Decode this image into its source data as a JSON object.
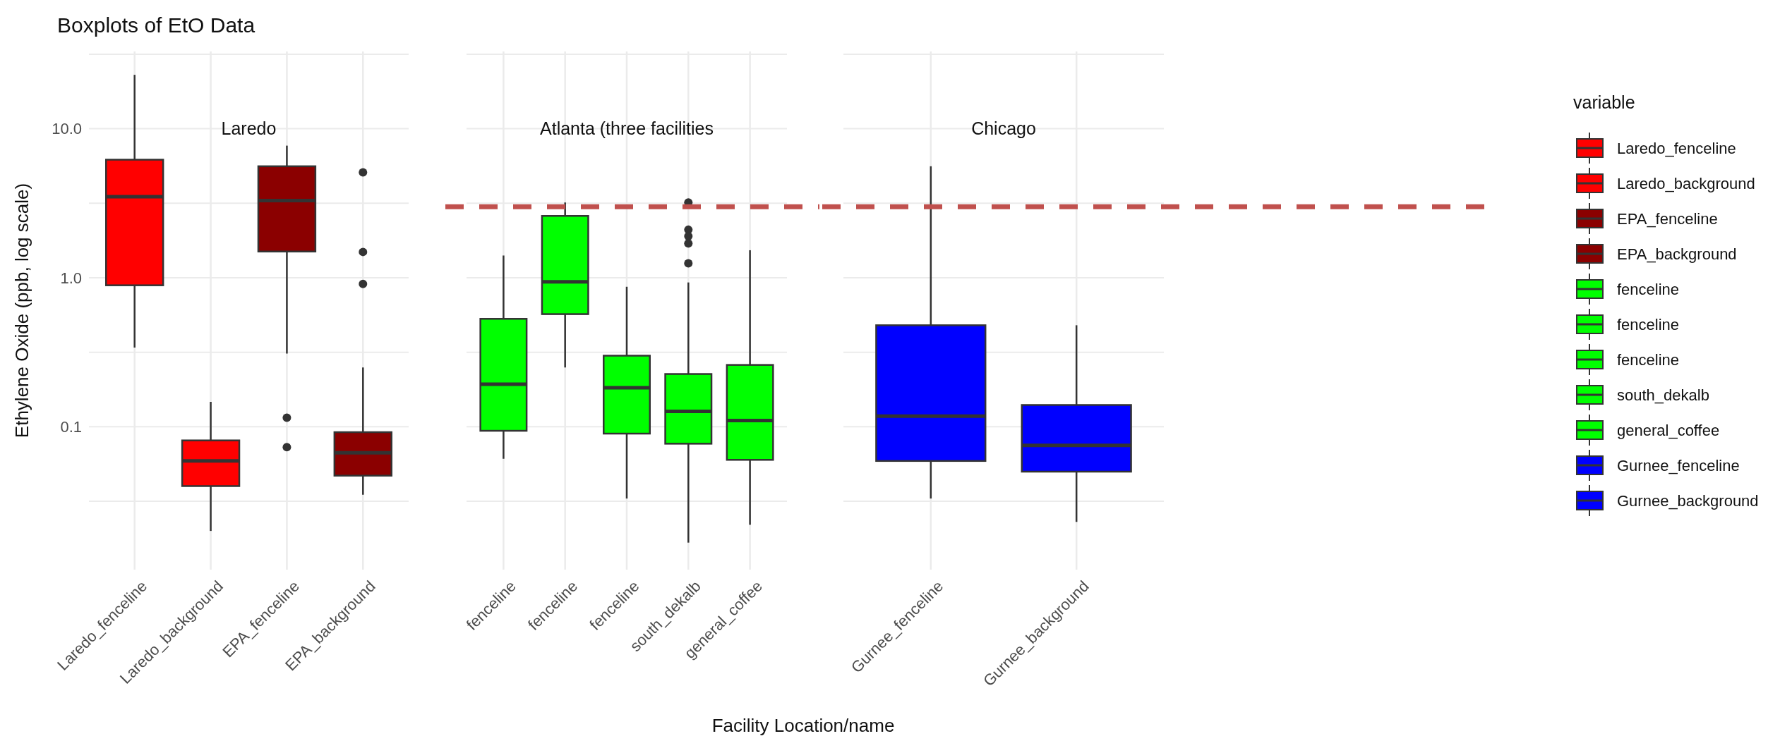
{
  "chart_data": [
    {
      "type": "box",
      "title": "Boxplots of EtO Data",
      "subtitle": "Laredo",
      "legend_title": "variable",
      "ylabel": "Ethylene Oxide (ppb, log scale)",
      "log": true,
      "grid": true,
      "ylim": [
        0.011,
        33
      ],
      "yticks": [
        {
          "value": 0.0316,
          "label": null
        },
        {
          "value": 0.1,
          "label": "0.1"
        },
        {
          "value": 0.316,
          "label": null
        },
        {
          "value": 1,
          "label": "1.0"
        },
        {
          "value": 3.16,
          "label": null
        },
        {
          "value": 10,
          "label": "10.0"
        },
        {
          "value": 31.6,
          "label": null
        }
      ],
      "categories": [
        "Laredo_fenceline",
        "Laredo_background",
        "EPA_fenceline",
        "EPA_background"
      ],
      "colors": [
        "#ff0000",
        "#ff0000",
        "#8b0000",
        "#8b0000"
      ],
      "boxes": [
        {
          "low": 0.34,
          "q1": 0.89,
          "median": 3.5,
          "q3": 6.2,
          "high": 23
        },
        {
          "low": 0.02,
          "q1": 0.04,
          "median": 0.059,
          "q3": 0.081,
          "high": 0.147
        },
        {
          "low": 0.31,
          "q1": 1.5,
          "median": 3.3,
          "q3": 5.6,
          "high": 7.7,
          "outliers": [
            0.115,
            0.073
          ]
        },
        {
          "low": 0.035,
          "q1": 0.047,
          "median": 0.067,
          "q3": 0.092,
          "high": 0.25,
          "outliers": [
            5.1,
            1.49,
            0.91
          ]
        }
      ]
    },
    {
      "type": "box",
      "subtitle": "Atlanta (three facilities",
      "xlabel": "Facility Location/name",
      "log": true,
      "grid": true,
      "tick_labels": "x",
      "ylim": [
        0.011,
        33
      ],
      "yticks": [
        {
          "value": 0.0316,
          "label": null
        },
        {
          "value": 0.1,
          "label": null
        },
        {
          "value": 0.316,
          "label": null
        },
        {
          "value": 1,
          "label": null
        },
        {
          "value": 3.16,
          "label": null
        },
        {
          "value": 10,
          "label": null
        },
        {
          "value": 31.6,
          "label": null
        }
      ],
      "categories": [
        "fenceline",
        "fenceline",
        "fenceline",
        "south_dekalb",
        "general_coffee"
      ],
      "colors": [
        "#00ff00",
        "#00ff00",
        "#00ff00",
        "#00ff00",
        "#00ff00"
      ],
      "ref_lines": [
        {
          "axis": "y",
          "value": 3,
          "color": "#c0504d",
          "line_style": "dashed"
        }
      ],
      "boxes": [
        {
          "low": 0.061,
          "q1": 0.094,
          "median": 0.193,
          "q3": 0.53,
          "high": 1.41
        },
        {
          "low": 0.25,
          "q1": 0.57,
          "median": 0.94,
          "q3": 2.6,
          "high": 3.2
        },
        {
          "low": 0.033,
          "q1": 0.09,
          "median": 0.183,
          "q3": 0.3,
          "high": 0.87
        },
        {
          "low": 0.0167,
          "q1": 0.077,
          "median": 0.127,
          "q3": 0.226,
          "high": 0.93,
          "outliers": [
            3.2,
            2.1,
            1.9,
            1.7,
            1.25
          ]
        },
        {
          "low": 0.022,
          "q1": 0.06,
          "median": 0.11,
          "q3": 0.26,
          "high": 1.53
        }
      ]
    },
    {
      "type": "box",
      "subtitle": "Chicago",
      "log": true,
      "grid": true,
      "tick_labels": "x",
      "ylim": [
        0.011,
        33
      ],
      "yticks": [
        {
          "value": 0.0316,
          "label": null
        },
        {
          "value": 0.1,
          "label": null
        },
        {
          "value": 0.316,
          "label": null
        },
        {
          "value": 1,
          "label": null
        },
        {
          "value": 3.16,
          "label": null
        },
        {
          "value": 10,
          "label": null
        },
        {
          "value": 31.6,
          "label": null
        }
      ],
      "categories": [
        "Gurnee_fenceline",
        "Gurnee_background"
      ],
      "colors": [
        "#0000ff",
        "#0000ff"
      ],
      "ref_lines": [
        {
          "axis": "y",
          "value": 3,
          "color": "#c0504d",
          "line_style": "dashed"
        }
      ],
      "boxes": [
        {
          "low": 0.033,
          "q1": 0.059,
          "median": 0.118,
          "q3": 0.48,
          "high": 5.6
        },
        {
          "low": 0.023,
          "q1": 0.05,
          "median": 0.075,
          "q3": 0.14,
          "high": 0.48
        }
      ]
    }
  ]
}
